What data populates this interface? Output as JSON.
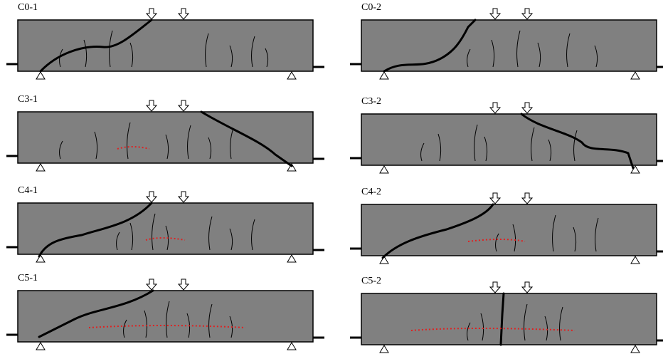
{
  "panels": [
    {
      "label": "C0-1"
    },
    {
      "label": "C0-2"
    },
    {
      "label": "C3-1"
    },
    {
      "label": "C3-2"
    },
    {
      "label": "C4-1"
    },
    {
      "label": "C4-2"
    },
    {
      "label": "C5-1"
    },
    {
      "label": "C5-2"
    }
  ]
}
